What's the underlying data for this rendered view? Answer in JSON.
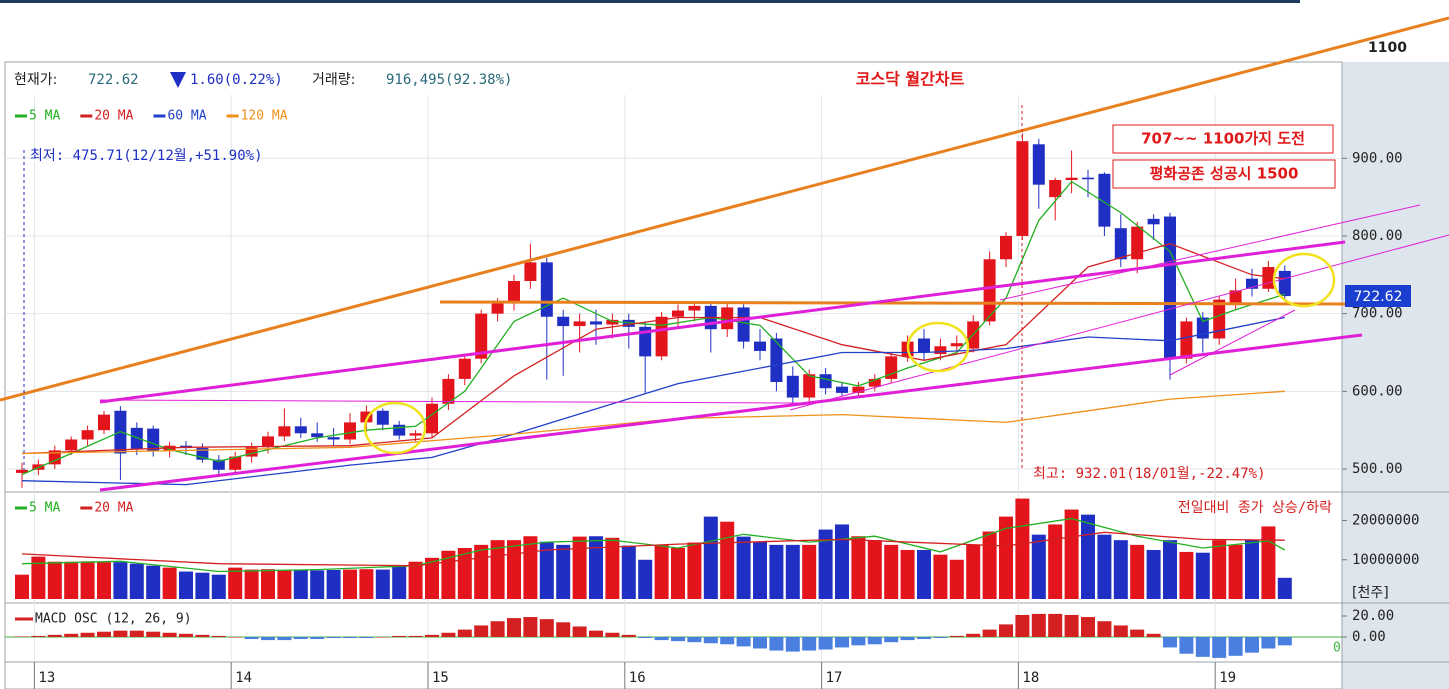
{
  "header": {
    "price_label": "현재가:",
    "price": "722.62",
    "change": "1.60(0.22%)",
    "volume_label": "거래량:",
    "volume": "916,495(92.38%)",
    "price_tag": "722.62"
  },
  "chart_data": [
    {
      "type": "candlestick",
      "title": "코스닥 월간차트",
      "annotations": [
        "1100",
        "707~~ 1100가지 도전",
        "평화공존 성공시 1500",
        "최저: 475.71(12/12월,+51.90%)",
        "최고: 932.01(18/01월,-22.47%)"
      ],
      "categories": [
        null,
        "13",
        null,
        null,
        null,
        null,
        null,
        null,
        null,
        null,
        null,
        null,
        null,
        "14",
        null,
        null,
        null,
        null,
        null,
        null,
        null,
        null,
        null,
        null,
        null,
        "15",
        null,
        null,
        null,
        null,
        null,
        null,
        null,
        null,
        null,
        null,
        null,
        "16",
        null,
        null,
        null,
        null,
        null,
        null,
        null,
        null,
        null,
        null,
        null,
        "17",
        null,
        null,
        null,
        null,
        null,
        null,
        null,
        null,
        null,
        null,
        null,
        "18",
        null,
        null,
        null,
        null,
        null,
        null,
        null,
        null,
        null,
        null,
        null,
        "19",
        null,
        null,
        null,
        null
      ],
      "open": [
        495,
        499,
        506,
        524,
        538,
        550,
        575,
        553,
        552,
        523,
        530,
        527,
        512,
        499,
        516,
        528,
        542,
        555,
        546,
        541,
        538,
        560,
        575,
        557,
        543,
        546,
        584,
        616,
        642,
        700,
        714,
        742,
        766,
        696,
        684,
        690,
        686,
        692,
        683,
        645,
        696,
        704,
        710,
        680,
        708,
        664,
        668,
        620,
        592,
        622,
        606,
        598,
        606,
        616,
        645,
        668,
        648,
        658,
        655,
        690,
        770,
        800,
        918,
        850,
        872,
        875,
        880,
        810,
        770,
        822,
        825,
        642,
        695,
        668,
        712,
        745,
        732,
        755
      ],
      "high": [
        508,
        512,
        530,
        542,
        556,
        575,
        581,
        560,
        556,
        535,
        536,
        533,
        518,
        522,
        534,
        548,
        578,
        566,
        560,
        553,
        572,
        582,
        578,
        562,
        550,
        592,
        622,
        648,
        705,
        720,
        750,
        790,
        772,
        705,
        700,
        705,
        700,
        700,
        690,
        702,
        712,
        715,
        716,
        715,
        712,
        680,
        675,
        632,
        628,
        630,
        612,
        612,
        622,
        650,
        672,
        680,
        668,
        672,
        698,
        780,
        805,
        932.01,
        925,
        875,
        910,
        885,
        882,
        828,
        818,
        828,
        830,
        695,
        702,
        722,
        745,
        758,
        768,
        762
      ],
      "low": [
        475.71,
        492,
        500,
        518,
        530,
        545,
        486,
        518,
        516,
        515,
        518,
        508,
        493,
        494,
        508,
        520,
        536,
        540,
        535,
        530,
        532,
        548,
        550,
        538,
        536,
        540,
        576,
        608,
        636,
        690,
        704,
        732,
        615,
        620,
        650,
        660,
        668,
        655,
        598,
        640,
        680,
        690,
        650,
        670,
        655,
        640,
        600,
        585,
        585,
        596,
        594,
        592,
        600,
        610,
        638,
        640,
        640,
        650,
        650,
        685,
        760,
        795,
        835,
        820,
        855,
        850,
        800,
        760,
        752,
        795,
        615,
        636,
        650,
        660,
        705,
        722,
        728,
        718
      ],
      "close": [
        499,
        506,
        524,
        538,
        550,
        570,
        520,
        526,
        523,
        530,
        527,
        512,
        499,
        516,
        528,
        542,
        555,
        546,
        541,
        538,
        560,
        574,
        557,
        543,
        546,
        584,
        616,
        642,
        700,
        714,
        742,
        766,
        696,
        684,
        690,
        686,
        692,
        683,
        645,
        696,
        704,
        710,
        680,
        708,
        664,
        652,
        612,
        592,
        622,
        604,
        598,
        606,
        616,
        645,
        664,
        650,
        658,
        662,
        690,
        770,
        800,
        922,
        866,
        872,
        875,
        873,
        812,
        770,
        812,
        815,
        642,
        690,
        668,
        718,
        730,
        732,
        760,
        722.62
      ],
      "up_color": "#e3141c",
      "down_color": "#1f2fc4",
      "series": [
        {
          "name": "5 MA",
          "color": "#22b022",
          "x": [
            0,
            3,
            6,
            9,
            12,
            15,
            18,
            21,
            24,
            27,
            30,
            33,
            36,
            39,
            42,
            45,
            48,
            51,
            54,
            57,
            60,
            62,
            64,
            67,
            70,
            72,
            74,
            77
          ],
          "values": [
            493,
            520,
            548,
            525,
            510,
            525,
            540,
            550,
            555,
            600,
            690,
            720,
            690,
            685,
            695,
            685,
            620,
            607,
            630,
            650,
            720,
            820,
            870,
            830,
            780,
            690,
            705,
            725
          ]
        },
        {
          "name": "20 MA",
          "color": "#d42020",
          "x": [
            0,
            10,
            20,
            25,
            30,
            35,
            40,
            45,
            50,
            55,
            60,
            65,
            70,
            75,
            77
          ],
          "values": [
            520,
            528,
            530,
            540,
            620,
            680,
            695,
            695,
            660,
            640,
            660,
            760,
            790,
            750,
            745
          ]
        },
        {
          "name": "60 MA",
          "color": "#2040c8",
          "x": [
            0,
            10,
            20,
            25,
            30,
            40,
            50,
            55,
            60,
            65,
            70,
            77
          ],
          "values": [
            485,
            480,
            505,
            515,
            545,
            610,
            650,
            650,
            655,
            670,
            665,
            695
          ]
        },
        {
          "name": "120 MA",
          "color": "#f0901a",
          "x": [
            0,
            20,
            30,
            40,
            50,
            60,
            65,
            70,
            77
          ],
          "values": [
            520,
            528,
            545,
            565,
            570,
            560,
            575,
            590,
            600
          ]
        }
      ],
      "ylim": [
        473,
        975
      ],
      "yticks": [
        {
          "value": 900,
          "label": "900.00"
        },
        {
          "value": 800,
          "label": "800.00"
        },
        {
          "value": 700,
          "label": "700.00"
        },
        {
          "value": 600,
          "label": "600.00"
        },
        {
          "value": 500,
          "label": "500.00"
        }
      ],
      "grid": true
    },
    {
      "type": "bar",
      "title": "전일대비 종가 상승/하락",
      "unit": "[천주]",
      "values": [
        6200000,
        10800000,
        9500000,
        9500000,
        9600000,
        9400000,
        9400000,
        9000000,
        8500000,
        8000000,
        7000000,
        6700000,
        6200000,
        8000000,
        7500000,
        7600000,
        7400000,
        7500000,
        7300000,
        7400000,
        7500000,
        7600000,
        7500000,
        8500000,
        9500000,
        10500000,
        12300000,
        13000000,
        13800000,
        15000000,
        15000000,
        16000000,
        14600000,
        13800000,
        15900000,
        16000000,
        15600000,
        13600000,
        10000000,
        13800000,
        13000000,
        14400000,
        21000000,
        19700000,
        15900000,
        14600000,
        13800000,
        13800000,
        13800000,
        17700000,
        19000000,
        16000000,
        15000000,
        13800000,
        12500000,
        12500000,
        11300000,
        10000000,
        13800000,
        17200000,
        21000000,
        25600000,
        16400000,
        19000000,
        22800000,
        21500000,
        16400000,
        15000000,
        13800000,
        12500000,
        15000000,
        12000000,
        11800000,
        15000000,
        13800000,
        15000000,
        18500000,
        5400000
      ],
      "series": [
        {
          "name": "5 MA",
          "color": "#22b022",
          "x": [
            0,
            6,
            12,
            18,
            24,
            28,
            32,
            36,
            40,
            44,
            48,
            52,
            56,
            60,
            64,
            68,
            72,
            76,
            77
          ],
          "values": [
            9000000,
            9600000,
            7000000,
            7500000,
            8500000,
            12500000,
            14500000,
            15000000,
            13000000,
            16500000,
            14500000,
            16000000,
            12000000,
            18000000,
            20500000,
            16000000,
            13000000,
            14800000,
            12500000
          ]
        },
        {
          "name": "20 MA",
          "color": "#d42020",
          "x": [
            0,
            12,
            24,
            32,
            40,
            50,
            60,
            66,
            72,
            77
          ],
          "values": [
            11500000,
            9000000,
            8500000,
            12500000,
            14000000,
            15200000,
            13500000,
            17000000,
            15200000,
            15000000
          ]
        }
      ],
      "ylim": [
        0,
        26000000
      ],
      "yticks": [
        20000000,
        10000000
      ]
    },
    {
      "type": "bar",
      "title": "MACD OSC (12, 26, 9)",
      "color": "#d42020",
      "negative_color": "#4a7fe0",
      "zero_label": 0,
      "values": [
        0.5,
        1,
        2,
        3,
        4,
        5,
        6,
        6,
        5,
        4,
        3,
        2,
        1,
        0,
        -2,
        -3,
        -3,
        -2,
        -2,
        -1,
        -1,
        -1,
        0,
        1,
        1,
        2,
        4,
        7,
        11,
        15,
        18,
        19,
        17,
        14,
        10,
        6,
        4,
        2,
        -1,
        -3,
        -4,
        -5,
        -6,
        -7,
        -9,
        -11,
        -13,
        -14,
        -13,
        -12,
        -10,
        -8,
        -7,
        -5,
        -3,
        -2,
        -1,
        1,
        3,
        7,
        12,
        21,
        22,
        22,
        21,
        19,
        15,
        11,
        7,
        3,
        -10,
        -16,
        -19,
        -20,
        -18,
        -15,
        -11,
        -8
      ],
      "ylim": [
        -22,
        30.5
      ],
      "yticks": [
        {
          "value": 20,
          "label": "20.00"
        },
        {
          "value": 0,
          "label": "0.00"
        }
      ]
    }
  ]
}
